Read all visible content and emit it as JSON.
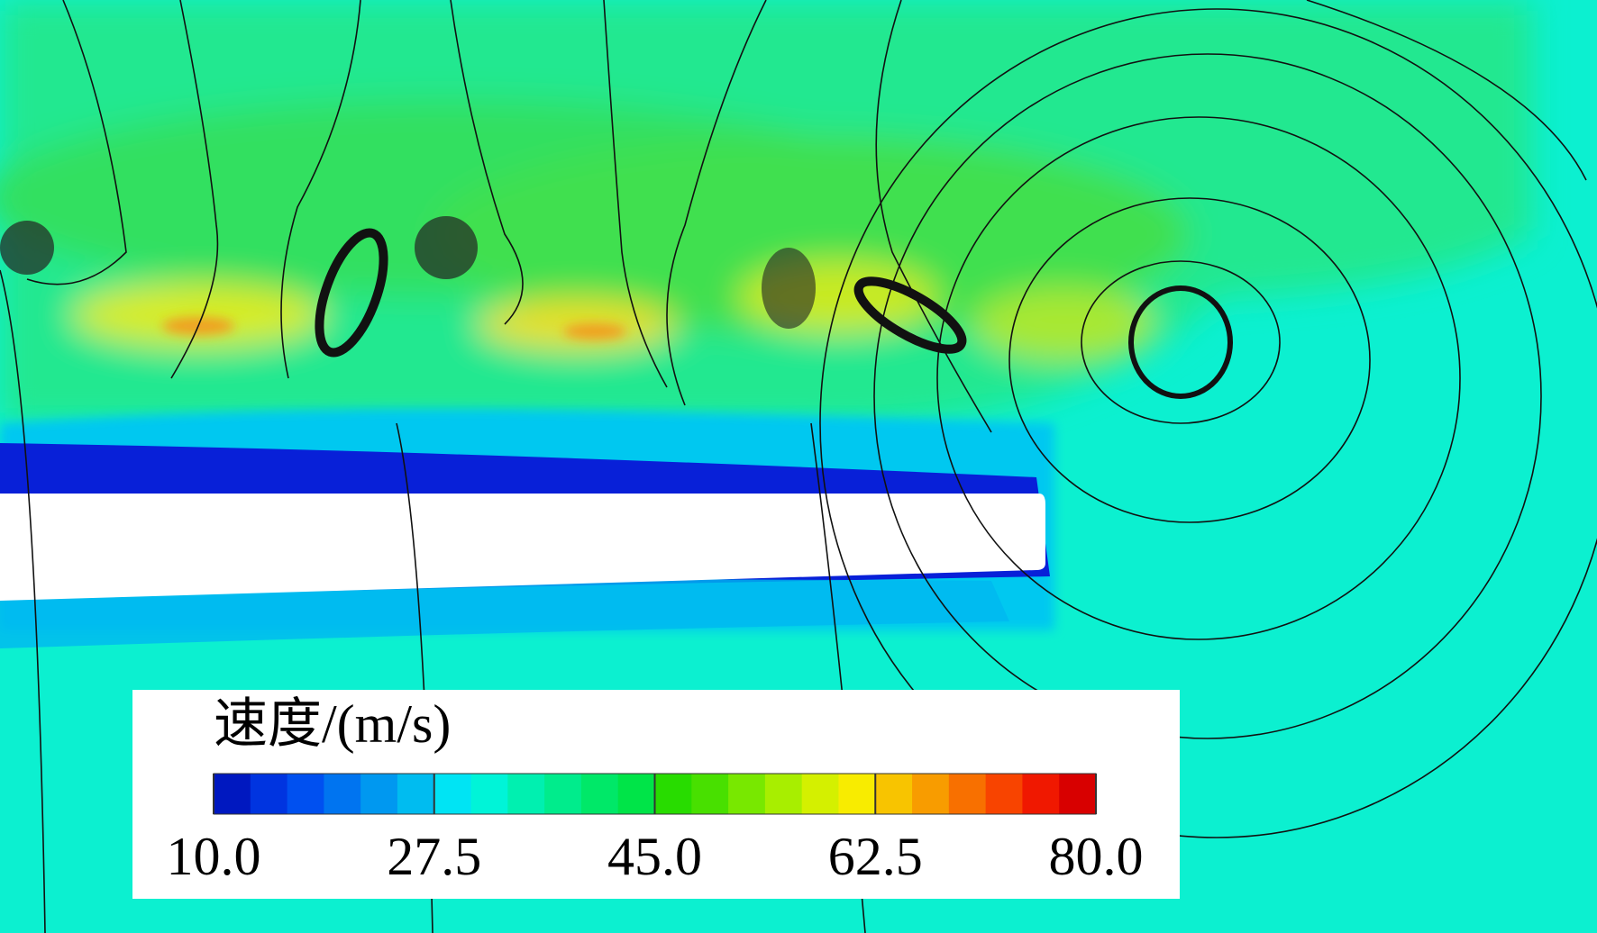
{
  "chart_data": {
    "type": "colorbar",
    "title": "速度/(m/s)",
    "zlim": [
      10,
      80
    ],
    "ticks": [
      {
        "value": 10,
        "label": "10.0"
      },
      {
        "value": 27.5,
        "label": "27.5"
      },
      {
        "value": 45,
        "label": "45.0"
      },
      {
        "value": 62.5,
        "label": "62.5"
      },
      {
        "value": 80,
        "label": "80.0"
      }
    ],
    "colors": [
      "#0018c0",
      "#0034e0",
      "#0050f0",
      "#0074f0",
      "#0098f0",
      "#00bcf0",
      "#00e4f4",
      "#00f4d8",
      "#00f0b0",
      "#00ec8c",
      "#00e868",
      "#00e448",
      "#28dc00",
      "#48e000",
      "#78e800",
      "#a8ee00",
      "#d4f000",
      "#f8ec00",
      "#f8c400",
      "#f89c00",
      "#f87000",
      "#f84400",
      "#f01800",
      "#d80000"
    ]
  }
}
